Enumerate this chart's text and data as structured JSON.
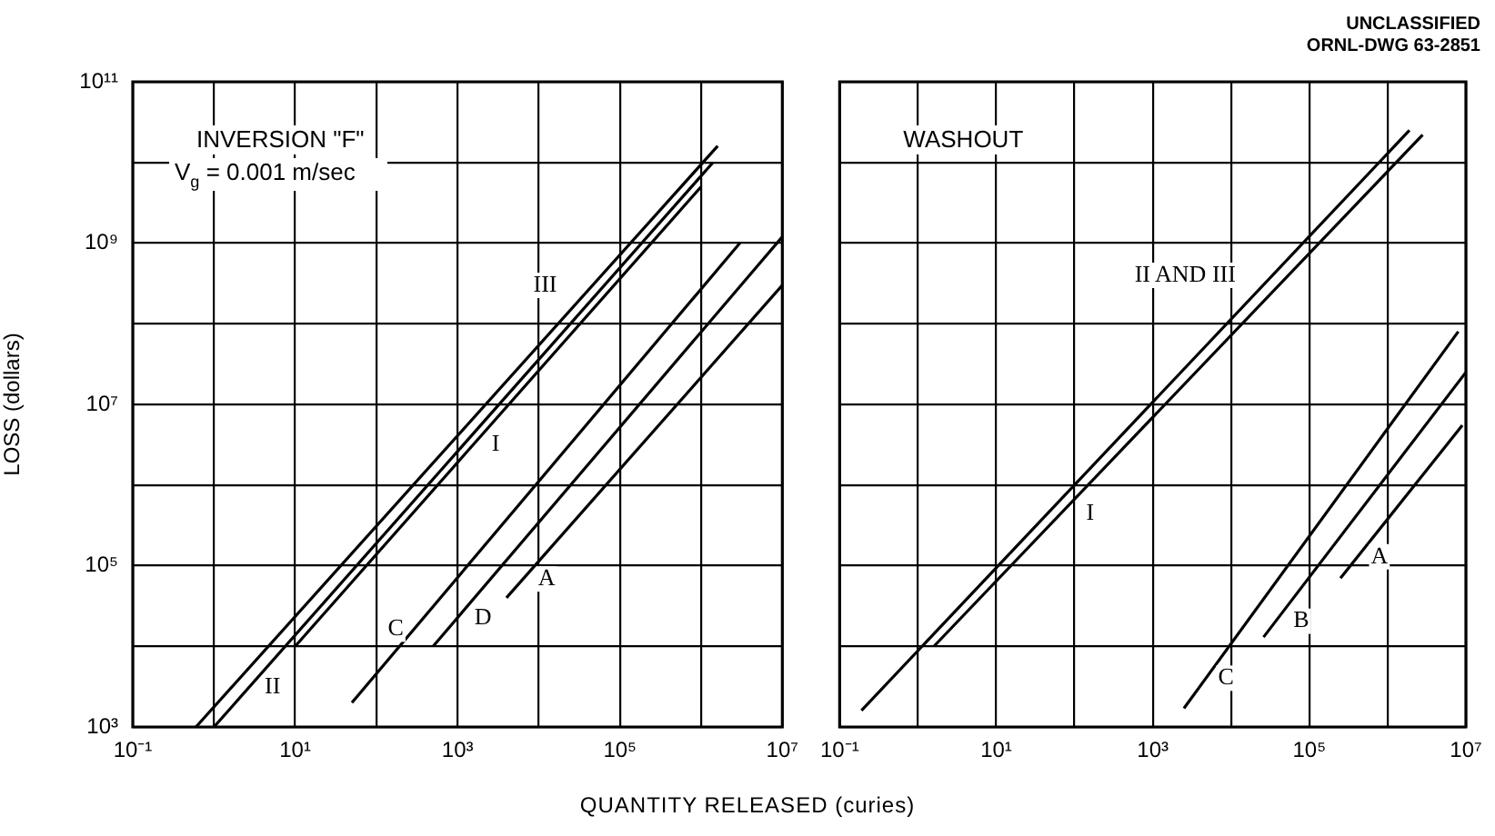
{
  "chart_data": [
    {
      "type": "line",
      "title": "INVERSION \"F\"",
      "subtitle": "V$_{g}$ = 0.001 m/sec",
      "ylabel": "LOSS (dollars)",
      "xlabel": "QUANTITY RELEASED (curies)",
      "log": "xy",
      "grid": true,
      "legend": false,
      "marker": "none",
      "line_style": "solid",
      "xlim": [
        0.1,
        10000000
      ],
      "ylim": [
        1000,
        100000000000
      ],
      "xticks": [
        {
          "value": 0.1,
          "label": "10⁻¹"
        },
        {
          "value": 1,
          "label": null
        },
        {
          "value": 10,
          "label": "10¹"
        },
        {
          "value": 100,
          "label": null
        },
        {
          "value": 1000,
          "label": "10³"
        },
        {
          "value": 10000,
          "label": null
        },
        {
          "value": 100000,
          "label": "10⁵"
        },
        {
          "value": 1000000,
          "label": null
        },
        {
          "value": 10000000,
          "label": "10⁷"
        }
      ],
      "yticks": [
        {
          "value": 1000,
          "label": "10³"
        },
        {
          "value": 10000,
          "label": null
        },
        {
          "value": 100000,
          "label": "10⁵"
        },
        {
          "value": 1000000,
          "label": null
        },
        {
          "value": 10000000,
          "label": "10⁷"
        },
        {
          "value": 100000000,
          "label": null
        },
        {
          "value": 1000000000,
          "label": "10⁹"
        },
        {
          "value": 10000000000,
          "label": null
        },
        {
          "value": 100000000000,
          "label": "10¹¹"
        }
      ],
      "series": [
        {
          "name": "III",
          "color": "#000000",
          "x": [
            0.6,
            1600000
          ],
          "values": [
            1000,
            16000000000
          ]
        },
        {
          "name": "II",
          "color": "#000000",
          "x": [
            1,
            1400000
          ],
          "values": [
            1000,
            10000000000
          ]
        },
        {
          "name": "I",
          "color": "#000000",
          "x": [
            10,
            1000000
          ],
          "values": [
            10000,
            5000000000
          ]
        },
        {
          "name": "C",
          "color": "#000000",
          "x": [
            50,
            3000000
          ],
          "values": [
            2000,
            1000000000
          ]
        },
        {
          "name": "D",
          "color": "#000000",
          "x": [
            500,
            10000000
          ],
          "values": [
            10000,
            1200000000
          ]
        },
        {
          "name": "A",
          "color": "#000000",
          "x": [
            4000,
            10000000
          ],
          "values": [
            40000,
            300000000
          ]
        }
      ]
    },
    {
      "type": "line",
      "title": "WASHOUT",
      "annotations": [
        "UNCLASSIFIED",
        "ORNL-DWG 63-2851"
      ],
      "log": "xy",
      "grid": true,
      "legend": false,
      "marker": "none",
      "line_style": "solid",
      "tick_labels": "x",
      "xlim": [
        0.1,
        10000000
      ],
      "ylim": [
        1000,
        100000000000
      ],
      "xticks": [
        {
          "value": 0.1,
          "label": "10⁻¹"
        },
        {
          "value": 1,
          "label": null
        },
        {
          "value": 10,
          "label": "10¹"
        },
        {
          "value": 100,
          "label": null
        },
        {
          "value": 1000,
          "label": "10³"
        },
        {
          "value": 10000,
          "label": null
        },
        {
          "value": 100000,
          "label": "10⁵"
        },
        {
          "value": 1000000,
          "label": null
        },
        {
          "value": 10000000,
          "label": "10⁷"
        }
      ],
      "yticks": [
        {
          "value": 1000,
          "label": null
        },
        {
          "value": 10000,
          "label": null
        },
        {
          "value": 100000,
          "label": null
        },
        {
          "value": 1000000,
          "label": null
        },
        {
          "value": 10000000,
          "label": null
        },
        {
          "value": 100000000,
          "label": null
        },
        {
          "value": 1000000000,
          "label": null
        },
        {
          "value": 10000000000,
          "label": null
        },
        {
          "value": 100000000000,
          "label": null
        }
      ],
      "series": [
        {
          "name": "II AND III",
          "color": "#000000",
          "x": [
            0.19,
            1900000
          ],
          "values": [
            1600,
            25000000000
          ]
        },
        {
          "name": "I",
          "color": "#000000",
          "x": [
            1.6,
            2800000
          ],
          "values": [
            10000,
            22000000000
          ]
        },
        {
          "name": "C",
          "color": "#000000",
          "x": [
            2500,
            8000000
          ],
          "values": [
            1700,
            80000000
          ]
        },
        {
          "name": "B",
          "color": "#000000",
          "x": [
            26000,
            10000000
          ],
          "values": [
            13000,
            25000000
          ]
        },
        {
          "name": "A",
          "color": "#000000",
          "x": [
            250000,
            9000000
          ],
          "values": [
            70000,
            5500000
          ]
        }
      ]
    }
  ]
}
